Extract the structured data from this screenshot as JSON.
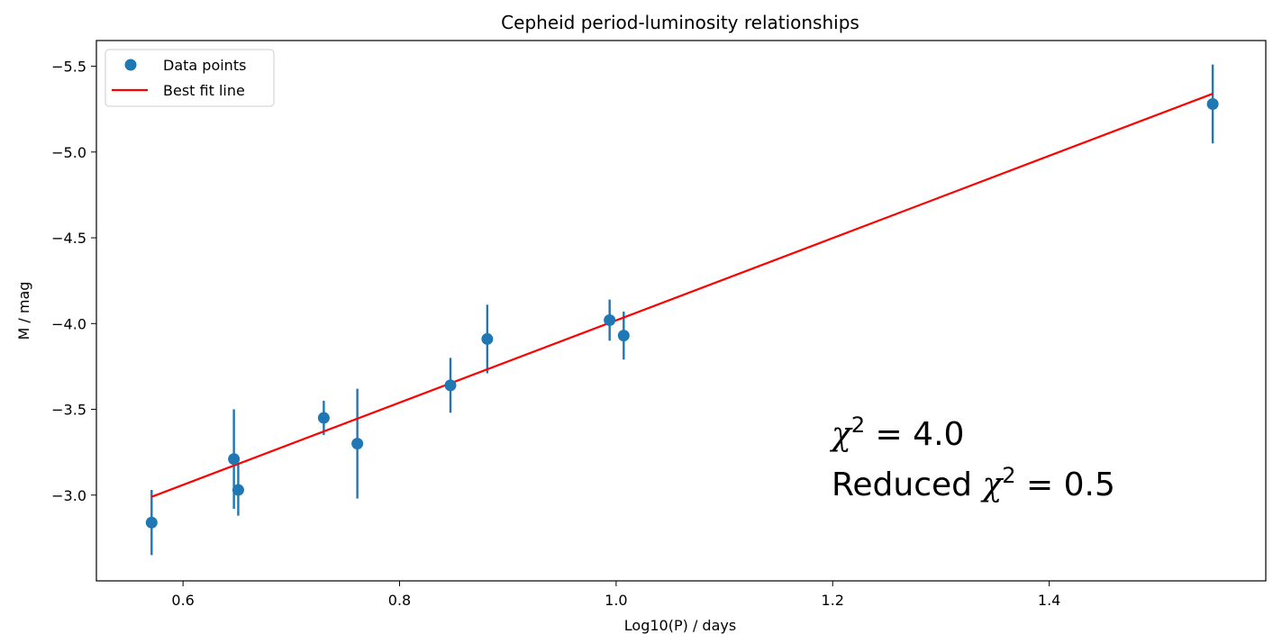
{
  "chart_data": {
    "type": "scatter",
    "title": "Cepheid period-luminosity relationships",
    "xlabel": "Log10(P) / days",
    "ylabel": "M / mag",
    "xlim": [
      0.52,
      1.6
    ],
    "ylim": [
      -2.5,
      -5.65
    ],
    "y_inverted": true,
    "x_ticks": [
      0.6,
      0.8,
      1.0,
      1.2,
      1.4
    ],
    "x_tick_labels": [
      "0.6",
      "0.8",
      "1.0",
      "1.2",
      "1.4"
    ],
    "y_ticks": [
      -3.0,
      -3.5,
      -4.0,
      -4.5,
      -5.0,
      -5.5
    ],
    "y_tick_labels": [
      "−3.0",
      "−3.5",
      "−4.0",
      "−4.5",
      "−5.0",
      "−5.5"
    ],
    "grid": false,
    "legend_position": "top-left",
    "series": [
      {
        "name": "Data points",
        "kind": "scatter_errorbar",
        "color": "#1f77b4",
        "points": [
          {
            "x": 0.571,
            "y": -2.84,
            "yerr": 0.19
          },
          {
            "x": 0.647,
            "y": -3.21,
            "yerr": 0.29
          },
          {
            "x": 0.651,
            "y": -3.03,
            "yerr": 0.15
          },
          {
            "x": 0.73,
            "y": -3.45,
            "yerr": 0.1
          },
          {
            "x": 0.761,
            "y": -3.3,
            "yerr": 0.32
          },
          {
            "x": 0.847,
            "y": -3.64,
            "yerr": 0.16
          },
          {
            "x": 0.881,
            "y": -3.91,
            "yerr": 0.2
          },
          {
            "x": 0.994,
            "y": -4.02,
            "yerr": 0.12
          },
          {
            "x": 1.007,
            "y": -3.93,
            "yerr": 0.14
          },
          {
            "x": 1.551,
            "y": -5.28,
            "yerr": 0.23
          }
        ]
      },
      {
        "name": "Best fit line",
        "kind": "line",
        "color": "#ff0000",
        "x": [
          0.571,
          1.551
        ],
        "y": [
          -2.99,
          -5.34
        ]
      }
    ],
    "annotations": {
      "chi2": {
        "prefix": "",
        "symbol": "χ",
        "sup": "2",
        "value": " = 4.0"
      },
      "reduced_chi2": {
        "prefix": "Reduced ",
        "symbol": "χ",
        "sup": "2",
        "value": " = 0.5"
      }
    }
  }
}
